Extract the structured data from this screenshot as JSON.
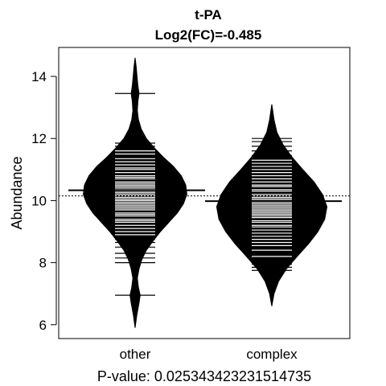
{
  "chart_data": {
    "type": "beanplot",
    "title": "t-PA",
    "subtitle": "Log2(FC)=-0.485",
    "xlabel": "P-value: 0.025343423231514735",
    "ylabel": "Abundance",
    "ylim": [
      5.7,
      14.8
    ],
    "yticks": [
      6,
      8,
      10,
      12,
      14
    ],
    "categories": [
      "other",
      "complex"
    ],
    "overall_mean": 10.15,
    "groups": [
      {
        "name": "other",
        "mean": 10.33,
        "density": [
          [
            5.9,
            0.0
          ],
          [
            6.3,
            0.03
          ],
          [
            6.5,
            0.05
          ],
          [
            6.7,
            0.07
          ],
          [
            6.95,
            0.09
          ],
          [
            7.2,
            0.06
          ],
          [
            7.5,
            0.04
          ],
          [
            7.8,
            0.07
          ],
          [
            8.1,
            0.12
          ],
          [
            8.4,
            0.2
          ],
          [
            8.7,
            0.32
          ],
          [
            9.0,
            0.45
          ],
          [
            9.3,
            0.6
          ],
          [
            9.6,
            0.75
          ],
          [
            9.9,
            0.86
          ],
          [
            10.2,
            0.92
          ],
          [
            10.5,
            0.9
          ],
          [
            10.8,
            0.82
          ],
          [
            11.1,
            0.68
          ],
          [
            11.4,
            0.5
          ],
          [
            11.7,
            0.34
          ],
          [
            12.0,
            0.2
          ],
          [
            12.3,
            0.11
          ],
          [
            12.6,
            0.06
          ],
          [
            12.9,
            0.04
          ],
          [
            13.2,
            0.05
          ],
          [
            13.45,
            0.07
          ],
          [
            13.7,
            0.05
          ],
          [
            14.0,
            0.035
          ],
          [
            14.3,
            0.02
          ],
          [
            14.6,
            0.0
          ]
        ],
        "observations": [
          6.95,
          8.0,
          8.15,
          8.3,
          8.5,
          8.65,
          8.75,
          8.9,
          9.0,
          9.1,
          9.2,
          9.3,
          9.35,
          9.4,
          9.5,
          9.55,
          9.6,
          9.7,
          9.75,
          9.8,
          9.85,
          9.9,
          9.95,
          10.0,
          10.05,
          10.1,
          10.15,
          10.2,
          10.25,
          10.3,
          10.35,
          10.4,
          10.45,
          10.5,
          10.55,
          10.6,
          10.7,
          10.75,
          10.8,
          10.9,
          11.0,
          11.05,
          11.15,
          11.25,
          11.35,
          11.5,
          11.6,
          11.75,
          11.85,
          13.45
        ]
      },
      {
        "name": "complex",
        "mean": 9.98,
        "density": [
          [
            6.6,
            0.0
          ],
          [
            7.0,
            0.04
          ],
          [
            7.4,
            0.12
          ],
          [
            7.8,
            0.26
          ],
          [
            8.2,
            0.45
          ],
          [
            8.6,
            0.65
          ],
          [
            9.0,
            0.82
          ],
          [
            9.4,
            0.94
          ],
          [
            9.8,
            0.98
          ],
          [
            10.2,
            0.9
          ],
          [
            10.6,
            0.75
          ],
          [
            11.0,
            0.55
          ],
          [
            11.4,
            0.36
          ],
          [
            11.8,
            0.2
          ],
          [
            12.2,
            0.09
          ],
          [
            12.6,
            0.04
          ],
          [
            13.1,
            0.0
          ]
        ],
        "observations": [
          7.75,
          7.85,
          7.95,
          8.2,
          8.4,
          8.55,
          8.65,
          8.75,
          8.85,
          8.95,
          9.05,
          9.15,
          9.2,
          9.3,
          9.35,
          9.45,
          9.5,
          9.55,
          9.6,
          9.65,
          9.7,
          9.75,
          9.8,
          9.85,
          9.9,
          9.95,
          10.0,
          10.05,
          10.1,
          10.15,
          10.2,
          10.3,
          10.35,
          10.45,
          10.5,
          10.6,
          10.7,
          10.8,
          10.9,
          11.0,
          11.1,
          11.2,
          11.3,
          11.45,
          11.6,
          11.75,
          11.9,
          12.0
        ]
      }
    ]
  }
}
